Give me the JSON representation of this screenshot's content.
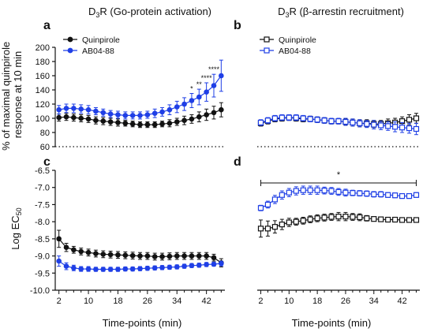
{
  "colors": {
    "black_series": "#111111",
    "blue_series": "#1f3fe6",
    "axis": "#111111"
  },
  "shared_axis_labels": {
    "top_y": "% of maximal quinpirole response at 10 min",
    "top_y_line1": "% of maximal quinpirole",
    "top_y_line2": "response at 10 min",
    "bottom_y_base": "Log EC",
    "bottom_y_sub": "50"
  },
  "chart_data": [
    {
      "panel": "a",
      "type": "line",
      "title_base": "D",
      "title_sub": "3",
      "title_rest": "R (Go-protein activation)",
      "ylabel": "% of maximal quinpirole response at 10 min",
      "xlabel": "",
      "xlim": [
        1,
        47
      ],
      "ylim": [
        60,
        200
      ],
      "yticks": [
        60,
        80,
        100,
        120,
        140,
        160,
        180,
        200
      ],
      "reference_line": 60,
      "legend": [
        "Quinpirole",
        "AB04-88"
      ],
      "legend_position": "top-left",
      "x": [
        2,
        4,
        6,
        8,
        10,
        12,
        14,
        16,
        18,
        20,
        22,
        24,
        26,
        28,
        30,
        32,
        34,
        36,
        38,
        40,
        42,
        44,
        46
      ],
      "series": [
        {
          "name": "Quinpirole",
          "marker": "filled-circle",
          "color": "#111111",
          "values": [
            101,
            102,
            101,
            100,
            99,
            97,
            96,
            95,
            94,
            93,
            92,
            91,
            91,
            91,
            92,
            93,
            95,
            97,
            99,
            102,
            105,
            108,
            112
          ],
          "errors": [
            5,
            5,
            5,
            5,
            5,
            5,
            5,
            5,
            5,
            4,
            4,
            4,
            4,
            4,
            4,
            5,
            5,
            6,
            6,
            7,
            8,
            9,
            10
          ]
        },
        {
          "name": "AB04-88",
          "marker": "filled-circle",
          "color": "#1f3fe6",
          "values": [
            112,
            114,
            114,
            113,
            112,
            110,
            108,
            106,
            105,
            104,
            104,
            104,
            105,
            107,
            109,
            112,
            116,
            120,
            125,
            130,
            137,
            146,
            160
          ],
          "errors": [
            6,
            6,
            6,
            6,
            6,
            5,
            5,
            5,
            5,
            5,
            5,
            5,
            5,
            6,
            6,
            7,
            8,
            9,
            10,
            11,
            13,
            16,
            22
          ]
        }
      ],
      "annotations": [
        {
          "x": 38,
          "text": "*"
        },
        {
          "x": 40,
          "text": "**"
        },
        {
          "x": 42,
          "text": "****"
        },
        {
          "x": 44,
          "text": "****"
        }
      ]
    },
    {
      "panel": "b",
      "type": "line",
      "title_base": "D",
      "title_sub": "3",
      "title_rest": "R (β-arrestin recruitment)",
      "xlim": [
        1,
        47
      ],
      "ylim": [
        60,
        200
      ],
      "reference_line": 60,
      "legend": [
        "Quinpirole",
        "AB04-88"
      ],
      "legend_position": "top-left",
      "x": [
        2,
        4,
        6,
        8,
        10,
        12,
        14,
        16,
        18,
        20,
        22,
        24,
        26,
        28,
        30,
        32,
        34,
        36,
        38,
        40,
        42,
        44,
        46
      ],
      "series": [
        {
          "name": "Quinpirole",
          "marker": "open-square",
          "color": "#111111",
          "values": [
            93,
            96,
            99,
            100,
            101,
            100,
            99,
            99,
            98,
            97,
            96,
            96,
            95,
            94,
            93,
            93,
            92,
            92,
            93,
            94,
            96,
            98,
            100
          ],
          "errors": [
            4,
            4,
            4,
            4,
            4,
            4,
            4,
            4,
            4,
            4,
            4,
            4,
            4,
            5,
            5,
            5,
            5,
            5,
            6,
            6,
            6,
            7,
            7
          ]
        },
        {
          "name": "AB04-88",
          "marker": "open-square",
          "color": "#1f3fe6",
          "values": [
            94,
            97,
            100,
            101,
            101,
            101,
            100,
            99,
            98,
            97,
            96,
            96,
            95,
            94,
            93,
            92,
            91,
            90,
            89,
            88,
            87,
            86,
            85
          ],
          "errors": [
            4,
            4,
            4,
            4,
            4,
            4,
            4,
            4,
            4,
            4,
            4,
            4,
            5,
            5,
            5,
            5,
            6,
            6,
            6,
            7,
            7,
            7,
            8
          ]
        }
      ]
    },
    {
      "panel": "c",
      "type": "line",
      "ylabel": "Log EC50",
      "xlabel": "Time-points (min)",
      "xlim": [
        1,
        47
      ],
      "ylim": [
        -10.0,
        -6.5
      ],
      "yticks": [
        -10.0,
        -9.5,
        -9.0,
        -8.5,
        -8.0,
        -7.5,
        -7.0,
        -6.5
      ],
      "xticks": [
        2,
        10,
        18,
        26,
        34,
        42
      ],
      "x": [
        2,
        4,
        6,
        8,
        10,
        12,
        14,
        16,
        18,
        20,
        22,
        24,
        26,
        28,
        30,
        32,
        34,
        36,
        38,
        40,
        42,
        44,
        46
      ],
      "series": [
        {
          "name": "Quinpirole",
          "marker": "filled-circle",
          "color": "#111111",
          "values": [
            -8.5,
            -8.75,
            -8.82,
            -8.87,
            -8.9,
            -8.93,
            -8.95,
            -8.96,
            -8.97,
            -8.98,
            -8.99,
            -9.0,
            -9.0,
            -9.02,
            -9.02,
            -9.01,
            -9.0,
            -9.0,
            -9.0,
            -9.0,
            -9.0,
            -9.05,
            -9.2
          ],
          "errors": [
            0.25,
            0.12,
            0.1,
            0.1,
            0.1,
            0.1,
            0.1,
            0.1,
            0.1,
            0.1,
            0.1,
            0.1,
            0.1,
            0.1,
            0.1,
            0.1,
            0.1,
            0.1,
            0.1,
            0.1,
            0.1,
            0.1,
            0.12
          ]
        },
        {
          "name": "AB04-88",
          "marker": "filled-circle",
          "color": "#1f3fe6",
          "values": [
            -9.15,
            -9.3,
            -9.35,
            -9.38,
            -9.38,
            -9.39,
            -9.39,
            -9.39,
            -9.39,
            -9.38,
            -9.38,
            -9.37,
            -9.36,
            -9.35,
            -9.34,
            -9.33,
            -9.32,
            -9.3,
            -9.28,
            -9.27,
            -9.25,
            -9.24,
            -9.22
          ],
          "errors": [
            0.15,
            0.1,
            0.08,
            0.07,
            0.07,
            0.06,
            0.06,
            0.06,
            0.06,
            0.06,
            0.06,
            0.06,
            0.06,
            0.06,
            0.06,
            0.06,
            0.06,
            0.06,
            0.06,
            0.06,
            0.06,
            0.06,
            0.07
          ]
        }
      ]
    },
    {
      "panel": "d",
      "type": "line",
      "xlabel": "Time-points (min)",
      "xlim": [
        1,
        47
      ],
      "ylim": [
        -10.0,
        -6.5
      ],
      "xticks": [
        2,
        10,
        18,
        26,
        34,
        42
      ],
      "significance": {
        "text": "*",
        "x_start": 2,
        "x_end": 46
      },
      "x": [
        2,
        4,
        6,
        8,
        10,
        12,
        14,
        16,
        18,
        20,
        22,
        24,
        26,
        28,
        30,
        32,
        34,
        36,
        38,
        40,
        42,
        44,
        46
      ],
      "series": [
        {
          "name": "Quinpirole",
          "marker": "open-square",
          "color": "#111111",
          "values": [
            -8.2,
            -8.2,
            -8.15,
            -8.08,
            -8.02,
            -8.0,
            -7.97,
            -7.93,
            -7.9,
            -7.88,
            -7.86,
            -7.85,
            -7.85,
            -7.86,
            -7.87,
            -7.9,
            -7.92,
            -7.93,
            -7.94,
            -7.94,
            -7.95,
            -7.95,
            -7.95
          ],
          "errors": [
            0.25,
            0.22,
            0.18,
            0.15,
            0.12,
            0.1,
            0.1,
            0.1,
            0.1,
            0.1,
            0.1,
            0.12,
            0.12,
            0.1,
            0.1,
            0.08,
            0.06,
            0.05,
            0.05,
            0.05,
            0.04,
            0.04,
            0.04
          ]
        },
        {
          "name": "AB04-88",
          "marker": "open-square",
          "color": "#1f3fe6",
          "values": [
            -7.6,
            -7.5,
            -7.35,
            -7.22,
            -7.15,
            -7.1,
            -7.08,
            -7.08,
            -7.08,
            -7.09,
            -7.1,
            -7.13,
            -7.15,
            -7.16,
            -7.17,
            -7.18,
            -7.2,
            -7.2,
            -7.22,
            -7.23,
            -7.25,
            -7.25,
            -7.22
          ],
          "errors": [
            0.08,
            0.1,
            0.12,
            0.12,
            0.12,
            0.12,
            0.12,
            0.12,
            0.12,
            0.1,
            0.1,
            0.1,
            0.1,
            0.08,
            0.08,
            0.08,
            0.08,
            0.08,
            0.07,
            0.07,
            0.07,
            0.07,
            0.07
          ]
        }
      ]
    }
  ]
}
